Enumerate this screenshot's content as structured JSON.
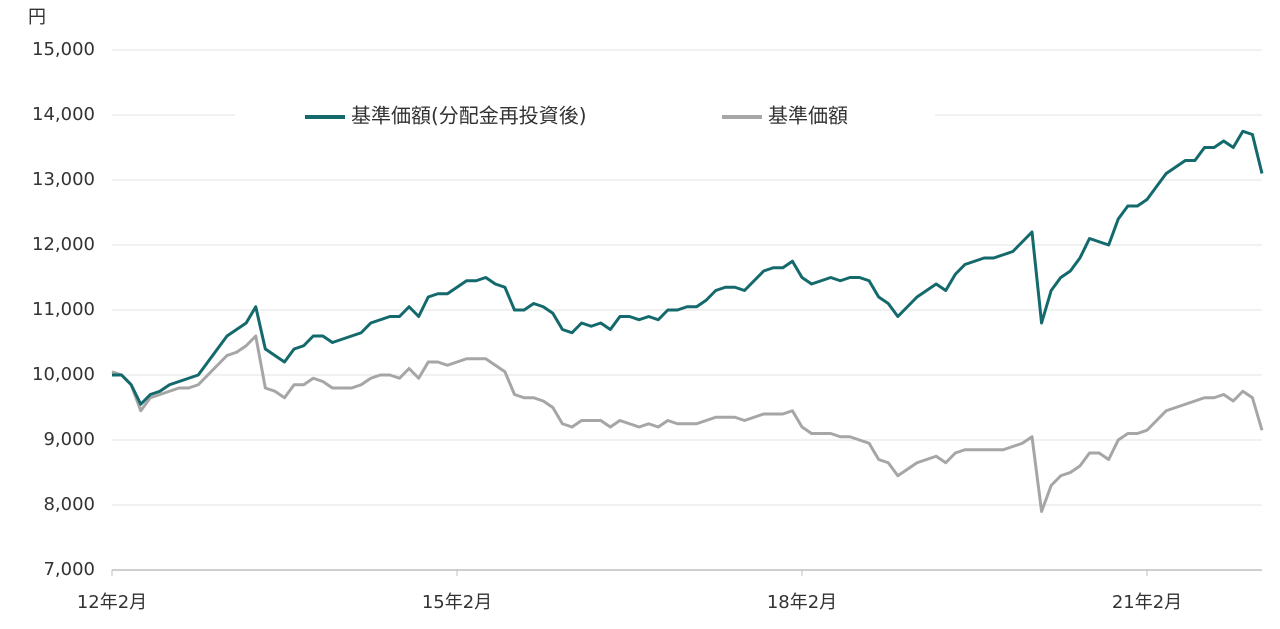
{
  "chart_data": {
    "type": "line",
    "ylabel": "円",
    "categories": [
      "12年2月",
      null,
      null,
      null,
      null,
      null,
      null,
      null,
      null,
      null,
      null,
      null,
      null,
      null,
      null,
      null,
      null,
      null,
      null,
      null,
      null,
      null,
      null,
      null,
      null,
      null,
      null,
      null,
      null,
      null,
      null,
      null,
      null,
      null,
      null,
      null,
      "15年2月",
      null,
      null,
      null,
      null,
      null,
      null,
      null,
      null,
      null,
      null,
      null,
      null,
      null,
      null,
      null,
      null,
      null,
      null,
      null,
      null,
      null,
      null,
      null,
      null,
      null,
      null,
      null,
      null,
      null,
      null,
      null,
      null,
      null,
      null,
      null,
      "18年2月",
      null,
      null,
      null,
      null,
      null,
      null,
      null,
      null,
      null,
      null,
      null,
      null,
      null,
      null,
      null,
      null,
      null,
      null,
      null,
      null,
      null,
      null,
      null,
      null,
      null,
      null,
      null,
      null,
      null,
      null,
      null,
      null,
      null,
      null,
      null,
      "21年2月",
      null,
      null,
      null,
      null,
      null,
      null,
      null,
      null,
      null,
      null,
      null,
      null
    ],
    "series": [
      {
        "name": "基準価額(分配金再投資後)",
        "color": "#13696b",
        "values": [
          10000,
          10000,
          9850,
          9550,
          9700,
          9750,
          9850,
          9900,
          9950,
          10000,
          10200,
          10400,
          10600,
          10700,
          10800,
          11050,
          10400,
          10300,
          10200,
          10400,
          10450,
          10600,
          10600,
          10500,
          10550,
          10600,
          10650,
          10800,
          10850,
          10900,
          10900,
          11050,
          10900,
          11200,
          11250,
          11250,
          11350,
          11450,
          11450,
          11500,
          11400,
          11350,
          11000,
          11000,
          11100,
          11050,
          10950,
          10700,
          10650,
          10800,
          10750,
          10800,
          10700,
          10900,
          10900,
          10850,
          10900,
          10850,
          11000,
          11000,
          11050,
          11050,
          11150,
          11300,
          11350,
          11350,
          11300,
          11450,
          11600,
          11650,
          11650,
          11750,
          11500,
          11400,
          11450,
          11500,
          11450,
          11500,
          11500,
          11450,
          11200,
          11100,
          10900,
          11050,
          11200,
          11300,
          11400,
          11300,
          11550,
          11700,
          11750,
          11800,
          11800,
          11850,
          11900,
          12050,
          12200,
          10800,
          11300,
          11500,
          11600,
          11800,
          12100,
          12050,
          12000,
          12400,
          12600,
          12600,
          12700,
          12900,
          13100,
          13200,
          13300,
          13300,
          13500,
          13500,
          13600,
          13500,
          13750,
          13700,
          13100
        ]
      },
      {
        "name": "基準価額",
        "color": "#a6a6a6",
        "values": [
          10050,
          10000,
          9850,
          9450,
          9650,
          9700,
          9750,
          9800,
          9800,
          9850,
          10000,
          10150,
          10300,
          10350,
          10450,
          10600,
          9800,
          9750,
          9650,
          9850,
          9850,
          9950,
          9900,
          9800,
          9800,
          9800,
          9850,
          9950,
          10000,
          10000,
          9950,
          10100,
          9950,
          10200,
          10200,
          10150,
          10200,
          10250,
          10250,
          10250,
          10150,
          10050,
          9700,
          9650,
          9650,
          9600,
          9500,
          9250,
          9200,
          9300,
          9300,
          9300,
          9200,
          9300,
          9250,
          9200,
          9250,
          9200,
          9300,
          9250,
          9250,
          9250,
          9300,
          9350,
          9350,
          9350,
          9300,
          9350,
          9400,
          9400,
          9400,
          9450,
          9200,
          9100,
          9100,
          9100,
          9050,
          9050,
          9000,
          8950,
          8700,
          8650,
          8450,
          8550,
          8650,
          8700,
          8750,
          8650,
          8800,
          8850,
          8850,
          8850,
          8850,
          8850,
          8900,
          8950,
          9050,
          7900,
          8300,
          8450,
          8500,
          8600,
          8800,
          8800,
          8700,
          9000,
          9100,
          9100,
          9150,
          9300,
          9450,
          9500,
          9550,
          9600,
          9650,
          9650,
          9700,
          9600,
          9750,
          9650,
          9150
        ]
      }
    ],
    "ylim": [
      7000,
      15000
    ],
    "yticks": [
      {
        "value": 7000,
        "label": "7,000"
      },
      {
        "value": 8000,
        "label": "8,000"
      },
      {
        "value": 9000,
        "label": "9,000"
      },
      {
        "value": 10000,
        "label": "10,000"
      },
      {
        "value": 11000,
        "label": "11,000"
      },
      {
        "value": 12000,
        "label": "12,000"
      },
      {
        "value": 13000,
        "label": "13,000"
      },
      {
        "value": 14000,
        "label": "14,000"
      },
      {
        "value": 15000,
        "label": "15,000"
      }
    ],
    "grid": true,
    "legend": "top"
  }
}
